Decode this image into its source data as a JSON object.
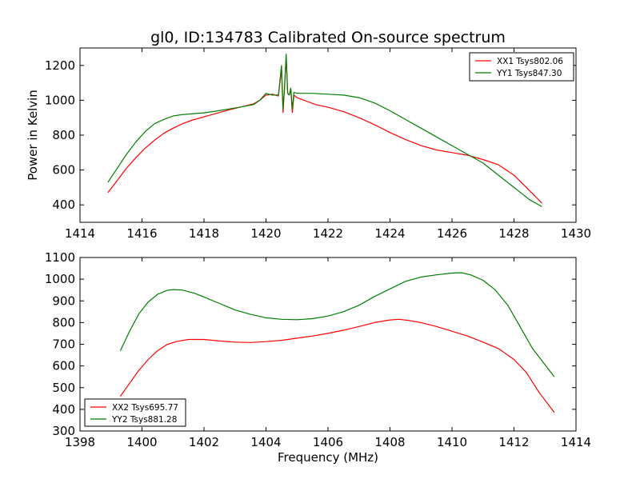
{
  "chart_data": [
    {
      "type": "line",
      "title": "gl0, ID:134783 Calibrated On-source spectrum",
      "xlabel": "",
      "ylabel": "Power in Kelvin",
      "xlim": [
        1414,
        1430
      ],
      "ylim": [
        300,
        1300
      ],
      "xticks": [
        "1414",
        "1416",
        "1418",
        "1420",
        "1422",
        "1424",
        "1426",
        "1428",
        "1430"
      ],
      "yticks": [
        "400",
        "600",
        "800",
        "1000",
        "1200"
      ],
      "grid": false,
      "legend_position": "top-right",
      "series": [
        {
          "name": "XX1 Tsys802.06",
          "color": "#ff0000",
          "x": [
            1414.9,
            1415.2,
            1415.5,
            1415.8,
            1416.1,
            1416.4,
            1416.7,
            1417.0,
            1417.3,
            1417.6,
            1418.0,
            1418.4,
            1418.8,
            1419.2,
            1419.6,
            1419.8,
            1420.0,
            1420.2,
            1420.4,
            1420.5,
            1420.55,
            1420.6,
            1420.65,
            1420.7,
            1420.75,
            1420.8,
            1420.85,
            1420.9,
            1421.0,
            1421.3,
            1421.6,
            1422.0,
            1422.5,
            1423.0,
            1423.5,
            1424.0,
            1424.5,
            1425.0,
            1425.5,
            1426.0,
            1426.5,
            1427.0,
            1427.5,
            1428.0,
            1428.4,
            1428.9
          ],
          "y": [
            470,
            540,
            610,
            670,
            725,
            770,
            810,
            840,
            865,
            885,
            905,
            925,
            945,
            962,
            980,
            1000,
            1030,
            1035,
            1025,
            1180,
            930,
            1070,
            1250,
            1040,
            1030,
            1060,
            930,
            1030,
            1015,
            995,
            975,
            960,
            935,
            900,
            860,
            815,
            775,
            740,
            715,
            700,
            685,
            660,
            630,
            570,
            500,
            410
          ]
        },
        {
          "name": "YY1 Tsys847.30",
          "color": "#007f00",
          "x": [
            1414.9,
            1415.2,
            1415.5,
            1415.8,
            1416.1,
            1416.4,
            1416.7,
            1417.0,
            1417.3,
            1417.6,
            1418.0,
            1418.4,
            1418.8,
            1419.2,
            1419.6,
            1419.8,
            1420.0,
            1420.2,
            1420.4,
            1420.5,
            1420.55,
            1420.6,
            1420.65,
            1420.7,
            1420.75,
            1420.8,
            1420.85,
            1420.9,
            1421.0,
            1421.5,
            1422.0,
            1422.5,
            1423.0,
            1423.5,
            1424.0,
            1424.5,
            1425.0,
            1425.5,
            1426.0,
            1426.5,
            1427.0,
            1427.5,
            1428.0,
            1428.5,
            1428.9
          ],
          "y": [
            530,
            610,
            690,
            760,
            820,
            865,
            890,
            910,
            918,
            922,
            928,
            938,
            950,
            962,
            975,
            1000,
            1040,
            1030,
            1030,
            1200,
            950,
            1080,
            1265,
            1040,
            1030,
            1070,
            950,
            1045,
            1040,
            1040,
            1035,
            1030,
            1015,
            985,
            940,
            890,
            840,
            790,
            740,
            690,
            640,
            570,
            500,
            430,
            390
          ]
        }
      ]
    },
    {
      "type": "line",
      "title": "",
      "xlabel": "Frequency (MHz)",
      "ylabel": "",
      "xlim": [
        1398,
        1414
      ],
      "ylim": [
        300,
        1100
      ],
      "xticks": [
        "1398",
        "1400",
        "1402",
        "1404",
        "1406",
        "1408",
        "1410",
        "1412",
        "1414"
      ],
      "yticks": [
        "300",
        "400",
        "500",
        "600",
        "700",
        "800",
        "900",
        "1000",
        "1100"
      ],
      "grid": false,
      "legend_position": "bottom-left",
      "series": [
        {
          "name": "XX2 Tsys695.77",
          "color": "#ff0000",
          "x": [
            1399.3,
            1399.6,
            1399.9,
            1400.2,
            1400.5,
            1400.8,
            1401.1,
            1401.5,
            1402.0,
            1402.5,
            1403.0,
            1403.5,
            1404.0,
            1404.5,
            1405.0,
            1405.5,
            1406.0,
            1406.5,
            1407.0,
            1407.5,
            1408.0,
            1408.3,
            1408.6,
            1409.0,
            1409.5,
            1410.0,
            1410.5,
            1411.0,
            1411.5,
            1412.0,
            1412.4,
            1412.8,
            1413.3
          ],
          "y": [
            460,
            520,
            580,
            630,
            670,
            698,
            712,
            722,
            722,
            715,
            710,
            708,
            712,
            718,
            728,
            738,
            750,
            765,
            782,
            800,
            812,
            815,
            810,
            800,
            782,
            760,
            738,
            710,
            680,
            630,
            570,
            480,
            385
          ]
        },
        {
          "name": "YY2 Tsys881.28",
          "color": "#007f00",
          "x": [
            1399.3,
            1399.6,
            1399.9,
            1400.2,
            1400.5,
            1400.8,
            1401.0,
            1401.3,
            1401.7,
            1402.0,
            1402.5,
            1403.0,
            1403.5,
            1404.0,
            1404.5,
            1405.0,
            1405.5,
            1406.0,
            1406.5,
            1407.0,
            1407.5,
            1408.0,
            1408.5,
            1409.0,
            1409.5,
            1410.0,
            1410.3,
            1410.6,
            1411.0,
            1411.4,
            1411.8,
            1412.2,
            1412.6,
            1413.3
          ],
          "y": [
            670,
            760,
            840,
            895,
            930,
            948,
            952,
            950,
            935,
            918,
            888,
            858,
            838,
            822,
            815,
            813,
            818,
            830,
            850,
            880,
            920,
            955,
            990,
            1010,
            1020,
            1028,
            1030,
            1020,
            995,
            950,
            880,
            780,
            680,
            550
          ]
        }
      ]
    }
  ]
}
